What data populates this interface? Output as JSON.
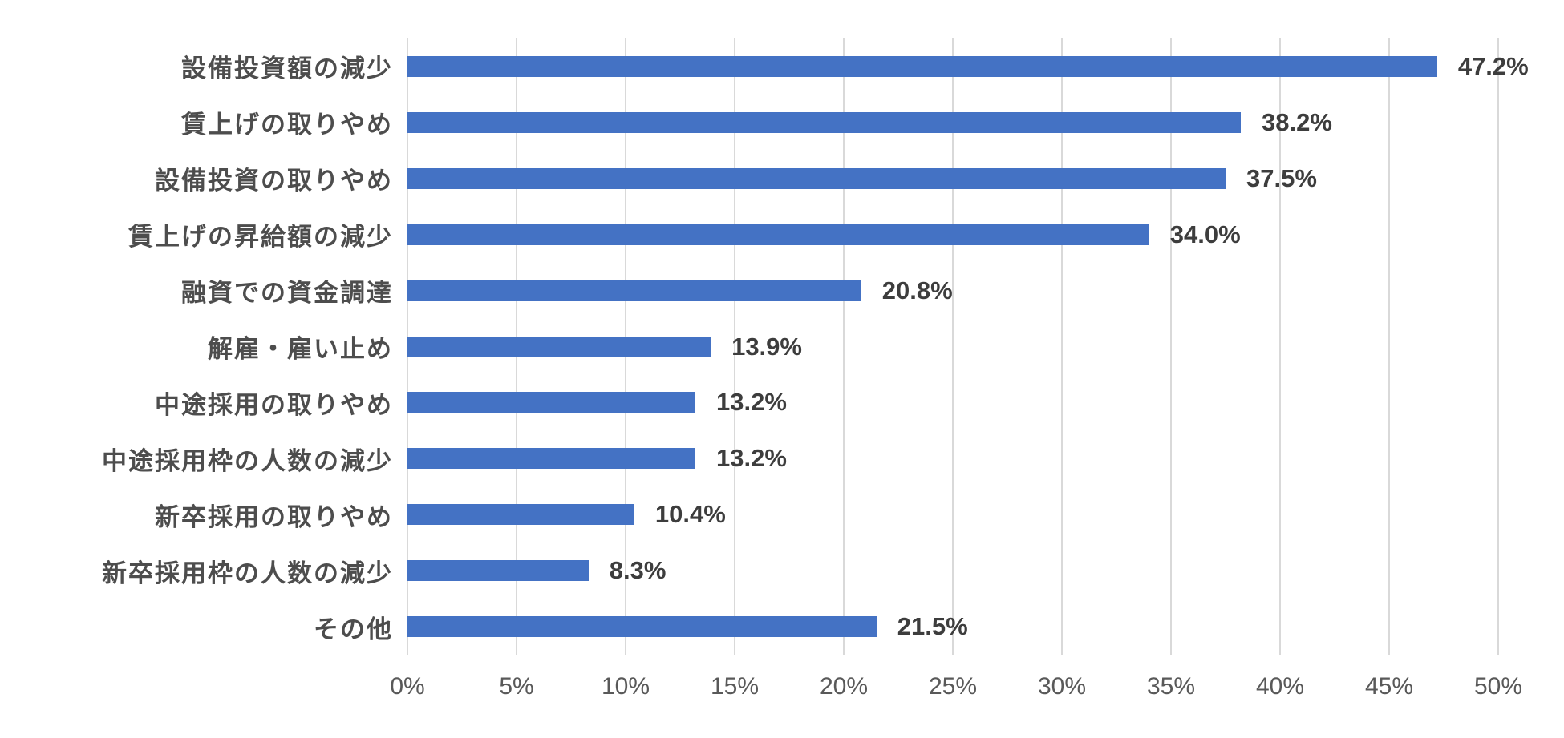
{
  "chart_data": {
    "type": "bar",
    "orientation": "horizontal",
    "title": "",
    "xlabel": "",
    "ylabel": "",
    "xlim": [
      0,
      50
    ],
    "grid": true,
    "legend": false,
    "categories": [
      "設備投資額の減少",
      "賃上げの取りやめ",
      "設備投資の取りやめ",
      "賃上げの昇給額の減少",
      "融資での資金調達",
      "解雇・雇い止め",
      "中途採用の取りやめ",
      "中途採用枠の人数の減少",
      "新卒採用の取りやめ",
      "新卒採用枠の人数の減少",
      "その他"
    ],
    "values": [
      47.2,
      38.2,
      37.5,
      34.0,
      20.8,
      13.9,
      13.2,
      13.2,
      10.4,
      8.3,
      21.5
    ],
    "data_labels": [
      "47.2%",
      "38.2%",
      "37.5%",
      "34.0%",
      "20.8%",
      "13.9%",
      "13.2%",
      "13.2%",
      "10.4%",
      "8.3%",
      "21.5%"
    ],
    "x_ticks": [
      "0%",
      "5%",
      "10%",
      "15%",
      "20%",
      "25%",
      "30%",
      "35%",
      "40%",
      "45%",
      "50%"
    ],
    "x_tick_values": [
      0,
      5,
      10,
      15,
      20,
      25,
      30,
      35,
      40,
      45,
      50
    ],
    "colors": {
      "bar": "#4472c4",
      "gridline": "#d9d9d9",
      "category_label": "#4d4d4d",
      "value_label": "#3d3d3d",
      "axis_label": "#595959",
      "background": "#ffffff"
    }
  }
}
